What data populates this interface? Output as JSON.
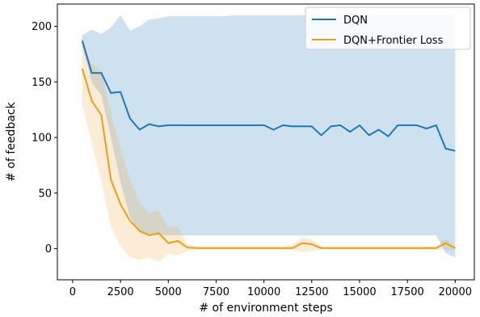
{
  "chart_data": {
    "type": "line",
    "title": "",
    "xlabel": "# of environment steps",
    "ylabel": "# of feedback",
    "xlim": [
      -800,
      21000
    ],
    "ylim": [
      -28,
      220
    ],
    "xticks": [
      0,
      2500,
      5000,
      7500,
      10000,
      12500,
      15000,
      17500,
      20000
    ],
    "yticks": [
      0,
      50,
      100,
      150,
      200
    ],
    "grid": false,
    "legend_position": "top-right",
    "series": [
      {
        "name": "DQN",
        "color": "#1f77b4",
        "band_color": "#1f77b4",
        "x": [
          500,
          1000,
          1500,
          2000,
          2500,
          3000,
          3500,
          4000,
          4500,
          5000,
          5500,
          6000,
          6500,
          7000,
          7500,
          8000,
          8500,
          9000,
          9500,
          10000,
          10500,
          11000,
          11500,
          12000,
          12500,
          13000,
          13500,
          14000,
          14500,
          15000,
          15500,
          16000,
          16500,
          17000,
          17500,
          18000,
          18500,
          19000,
          19500,
          20000
        ],
        "y": [
          187,
          158,
          158,
          140,
          141,
          117,
          107,
          112,
          110,
          111,
          111,
          111,
          111,
          111,
          111,
          111,
          111,
          111,
          111,
          111,
          107,
          111,
          110,
          110,
          110,
          102,
          110,
          111,
          105,
          111,
          102,
          107,
          101,
          111,
          111,
          111,
          108,
          111,
          90,
          88
        ],
        "lower": [
          183,
          149,
          138,
          100,
          60,
          28,
          14,
          12,
          12,
          12,
          12,
          12,
          12,
          12,
          12,
          12,
          12,
          12,
          12,
          12,
          12,
          12,
          12,
          12,
          12,
          12,
          12,
          12,
          12,
          12,
          12,
          12,
          12,
          12,
          12,
          12,
          12,
          12,
          -4,
          -8
        ],
        "upper": [
          192,
          197,
          193,
          199,
          210,
          196,
          200,
          206,
          207,
          209,
          209,
          209,
          209,
          209,
          209,
          209,
          210,
          210,
          210,
          210,
          210,
          210,
          210,
          210,
          210,
          210,
          210,
          210,
          210,
          210,
          210,
          210,
          210,
          210,
          210,
          210,
          210,
          210,
          210,
          210
        ]
      },
      {
        "name": "DQN+Frontier Loss",
        "color": "#e69f1a",
        "band_color": "#f4a742",
        "x": [
          500,
          1000,
          1500,
          2000,
          2500,
          3000,
          3500,
          4000,
          4500,
          5000,
          5500,
          6000,
          6500,
          7000,
          7500,
          8000,
          8500,
          9000,
          9500,
          10000,
          10500,
          11000,
          11500,
          12000,
          12500,
          13000,
          13500,
          14000,
          14500,
          15000,
          15500,
          16000,
          16500,
          17000,
          17500,
          18000,
          18500,
          19000,
          19500,
          20000
        ],
        "y": [
          162,
          133,
          120,
          62,
          40,
          25,
          16,
          12,
          14,
          5,
          7,
          1,
          0.5,
          0.5,
          0.5,
          0.5,
          0.5,
          0.5,
          0.5,
          0.5,
          0.5,
          0.5,
          0.5,
          5,
          4,
          0.5,
          0.5,
          0.5,
          0.5,
          0.5,
          0.5,
          0.5,
          0.5,
          0.5,
          0.5,
          0.5,
          0.5,
          0.5,
          5,
          0.5
        ],
        "lower": [
          130,
          95,
          60,
          20,
          2,
          -8,
          -10,
          -8,
          -12,
          -5,
          -6,
          -2,
          -1,
          -1,
          -1,
          -1,
          -1,
          -1,
          -1,
          -1,
          -1,
          -1,
          -1,
          -3,
          -2,
          -1,
          -1,
          -1,
          -1,
          -1,
          -1,
          -1,
          -1,
          -1,
          -1,
          -1,
          -1,
          -1,
          -1,
          -1
        ],
        "upper": [
          183,
          166,
          160,
          122,
          90,
          62,
          42,
          32,
          34,
          19,
          20,
          4,
          2,
          2,
          2,
          2,
          2,
          2,
          2,
          2,
          2,
          2,
          4,
          10,
          8,
          2,
          2,
          2,
          2,
          2,
          2,
          2,
          2,
          2,
          2,
          2,
          2,
          2,
          9,
          2
        ]
      }
    ]
  }
}
